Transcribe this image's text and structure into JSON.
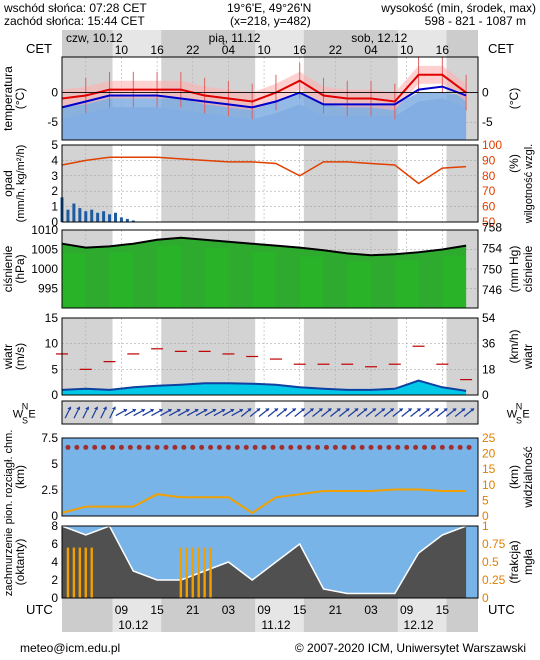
{
  "header": {
    "sunrise": "wschód słońca: 07:28 CET",
    "sunset": "zachód słońca: 15:44 CET",
    "coords": "19°6'E, 49°26'N",
    "grid": "(x=218, y=482)",
    "elevation_label": "wysokość (min, środek, max)",
    "elevation_values": "598 - 821 - 1087 m"
  },
  "timeline": {
    "tz_left": "CET",
    "tz_right": "CET",
    "tz_bottom_left": "UTC",
    "tz_bottom_right": "UTC",
    "day_labels_top": [
      {
        "label": "czw, 10.12",
        "hour": 0
      },
      {
        "label": "pią, 11.12",
        "hour": 24
      },
      {
        "label": "sob, 12.12",
        "hour": 48
      }
    ],
    "cet_ticks": [
      {
        "label": "10",
        "hour": 10
      },
      {
        "label": "16",
        "hour": 16
      },
      {
        "label": "22",
        "hour": 22
      },
      {
        "label": "04",
        "hour": 28
      },
      {
        "label": "10",
        "hour": 34
      },
      {
        "label": "16",
        "hour": 40
      },
      {
        "label": "22",
        "hour": 46
      },
      {
        "label": "04",
        "hour": 52
      },
      {
        "label": "10",
        "hour": 58
      },
      {
        "label": "16",
        "hour": 64
      }
    ],
    "utc_ticks": [
      {
        "label": "09",
        "hour": 10
      },
      {
        "label": "15",
        "hour": 16
      },
      {
        "label": "21",
        "hour": 22
      },
      {
        "label": "03",
        "hour": 28
      },
      {
        "label": "09",
        "hour": 34
      },
      {
        "label": "15",
        "hour": 40
      },
      {
        "label": "21",
        "hour": 46
      },
      {
        "label": "03",
        "hour": 52
      },
      {
        "label": "09",
        "hour": 58
      },
      {
        "label": "15",
        "hour": 64
      }
    ],
    "date_labels_bottom": [
      {
        "label": "10.12",
        "hour": 12
      },
      {
        "label": "11.12",
        "hour": 36
      },
      {
        "label": "12.12",
        "hour": 60
      }
    ]
  },
  "footer": {
    "left": "meteo@icm.edu.pl",
    "right": "© 2007-2020 ICM, Uniwersytet Warszawski"
  },
  "colors": {
    "night": "#d3d3d3",
    "day": "#ffffff",
    "temp_line": "#e00000",
    "dew_line": "#0000cc",
    "precip_bar": "#1e5aa0",
    "humidity_line": "#e04000",
    "pressure_fill": "#2eaa2e",
    "pressure_line": "#000000",
    "wind_fill": "#00c8e6",
    "wind_gust": "#c00000",
    "wind_arrow": "#1a3ca0",
    "vis_fill": "#78b4e8",
    "vis_line": "#f0a000",
    "cloud_fill": "#505050",
    "fog_bar": "#f0a000"
  },
  "chart_data": [
    {
      "type": "line",
      "name": "temperature",
      "ylabel_left": "temperatura (°C)",
      "ylabel_right": "(°C)",
      "ylim": [
        -8,
        6
      ],
      "yticks": [
        0,
        -5
      ],
      "x_hours": [
        0,
        4,
        8,
        12,
        16,
        20,
        24,
        28,
        32,
        36,
        40,
        44,
        48,
        52,
        56,
        60,
        64,
        68
      ],
      "temp": [
        -1,
        -0.5,
        0.5,
        0.5,
        0.5,
        0.5,
        -0.5,
        -1,
        -1.5,
        0,
        2,
        -0.5,
        -1,
        -1,
        -1.5,
        3,
        3,
        0
      ],
      "dew": [
        -2.5,
        -1.5,
        -0.5,
        -0.5,
        -0.5,
        -1,
        -1.5,
        -2,
        -2.5,
        -1.5,
        0,
        -2,
        -2,
        -2,
        -2,
        0.5,
        1,
        -0.5
      ]
    },
    {
      "type": "bar",
      "name": "precipitation_humidity",
      "ylabel_left": "opad (mm/h, kg/m²/h)",
      "ylabel_right": "wilgotność wzgl. (%)",
      "ylim_left": [
        0,
        5
      ],
      "yticks_left": [
        0,
        1,
        2,
        3,
        4,
        5
      ],
      "ylim_right": [
        50,
        100
      ],
      "yticks_right": [
        50,
        60,
        70,
        80,
        90,
        100
      ],
      "x_hours": [
        0,
        4,
        8,
        12,
        16,
        20,
        24,
        28,
        32,
        36,
        40,
        44,
        48,
        52,
        56,
        60,
        64,
        68
      ],
      "humidity": [
        87,
        90,
        92,
        92,
        92,
        91,
        90,
        89,
        89,
        88,
        80,
        89,
        89,
        88,
        87,
        75,
        85,
        86
      ],
      "precip_hours": [
        0,
        1,
        2,
        3,
        4,
        5,
        6,
        7,
        8,
        9,
        10,
        11,
        12
      ],
      "precip": [
        1.6,
        0.8,
        1.2,
        0.9,
        0.7,
        0.8,
        0.6,
        0.7,
        0.5,
        0.6,
        0.3,
        0.2,
        0.1
      ]
    },
    {
      "type": "area",
      "name": "pressure",
      "ylabel_left": "ciśnienie (hPa)",
      "ylabel_right": "(mm Hg)",
      "ylim": [
        990,
        1010
      ],
      "yticks_left": [
        995,
        1000,
        1005,
        1010
      ],
      "yticks_right": [
        746,
        750,
        754,
        758
      ],
      "x_hours": [
        0,
        4,
        8,
        12,
        16,
        20,
        24,
        28,
        32,
        36,
        40,
        44,
        48,
        52,
        56,
        60,
        64,
        68
      ],
      "values": [
        1006.5,
        1005.5,
        1005.8,
        1006.5,
        1007.5,
        1008,
        1007.5,
        1007,
        1006.5,
        1006,
        1005.5,
        1004.8,
        1004,
        1003.5,
        1003.8,
        1004.3,
        1005,
        1006
      ]
    },
    {
      "type": "area",
      "name": "wind",
      "ylabel_left": "wiatr (m/s)",
      "ylabel_right": "(km/h) wiatr",
      "ylim": [
        0,
        15
      ],
      "yticks_left": [
        0,
        5,
        10,
        15
      ],
      "yticks_right": [
        0,
        18,
        36,
        54
      ],
      "x_hours": [
        0,
        4,
        8,
        12,
        16,
        20,
        24,
        28,
        32,
        36,
        40,
        44,
        48,
        52,
        56,
        60,
        64,
        68
      ],
      "speed": [
        1,
        1.2,
        1,
        1.5,
        1.8,
        2,
        2.3,
        2.3,
        2.2,
        2,
        1.5,
        1.2,
        1,
        1,
        1.2,
        2.8,
        1.5,
        0.8
      ],
      "gust": [
        8,
        5,
        6.5,
        8,
        9,
        8.5,
        8.5,
        8,
        7.5,
        7,
        6,
        6,
        6,
        5.5,
        6,
        9.5,
        6,
        3
      ]
    },
    {
      "type": "line",
      "name": "visibility_cloudbase",
      "ylabel_left": "pion. rozciągł. chm. (km)",
      "ylabel_right": "(km) widzialność",
      "ylim_left": [
        0,
        7.5
      ],
      "yticks_left": [
        0,
        2.5,
        5,
        7.5
      ],
      "ylim_right": [
        0,
        25
      ],
      "yticks_right": [
        0,
        5,
        10,
        15,
        20,
        25
      ],
      "x_hours": [
        0,
        4,
        8,
        12,
        16,
        20,
        24,
        28,
        32,
        36,
        40,
        44,
        48,
        52,
        56,
        60,
        64,
        68
      ],
      "visibility": [
        1,
        3,
        3,
        3,
        7,
        6,
        6,
        6,
        1,
        6,
        7,
        8,
        8,
        8,
        8.5,
        8.5,
        8,
        8
      ]
    },
    {
      "type": "area",
      "name": "cloud_fog",
      "ylabel_left": "zachmurzenie (oktanty)",
      "ylabel_right": "(frakcja) mgła",
      "ylim_left": [
        0,
        8
      ],
      "yticks_left": [
        0,
        2,
        4,
        6,
        8
      ],
      "ylim_right": [
        0,
        1
      ],
      "yticks_right": [
        "0",
        "0.25",
        "0.5",
        "0.75",
        "1"
      ],
      "x_hours": [
        0,
        4,
        8,
        12,
        16,
        20,
        24,
        28,
        32,
        36,
        40,
        44,
        48,
        52,
        56,
        60,
        64,
        68
      ],
      "cloud": [
        8,
        7,
        8,
        3,
        2,
        2,
        3,
        4,
        2,
        4,
        6,
        1,
        0.5,
        0.5,
        0.5,
        5,
        7,
        8
      ]
    }
  ]
}
